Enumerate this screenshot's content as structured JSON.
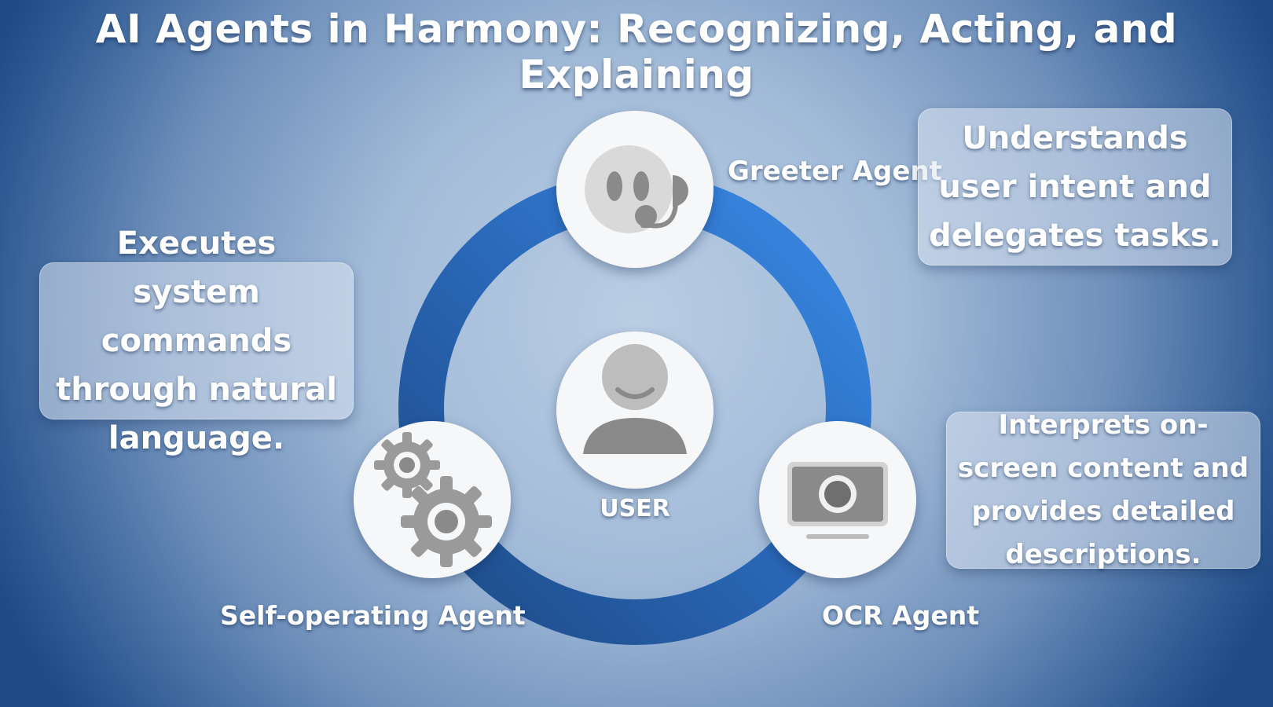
{
  "title": "AI Agents in Harmony: Recognizing, Acting, and Explaining",
  "nodes": {
    "center": {
      "label": "USER",
      "icon": "user-icon"
    },
    "greeter": {
      "label": "Greeter Agent",
      "icon": "headset-bot-icon",
      "description": "Understands user intent and delegates tasks."
    },
    "self_operating": {
      "label": "Self-operating Agent",
      "icon": "gears-icon",
      "description": "Executes system commands through natural language."
    },
    "ocr": {
      "label": "OCR Agent",
      "icon": "screen-camera-icon",
      "description": "Interprets on-screen content and provides detailed descriptions."
    }
  },
  "colors": {
    "ring_light": "#3585e0",
    "ring_dark": "#1d4a86",
    "icon_gray": "#8a8a8a",
    "node_fill": "#f6f7f9"
  }
}
